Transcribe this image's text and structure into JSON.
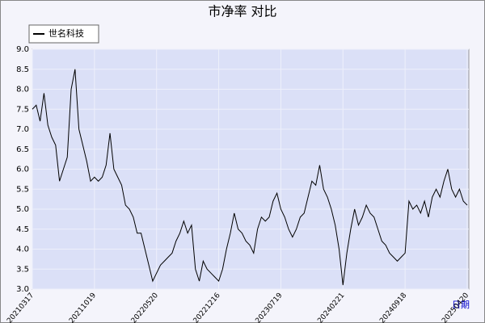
{
  "chart_data": {
    "type": "line",
    "title": "市净率 对比",
    "x_label": "日期",
    "categories": [
      "20210317",
      null,
      null,
      null,
      null,
      null,
      null,
      null,
      null,
      null,
      null,
      null,
      null,
      null,
      null,
      null,
      "20211019",
      null,
      null,
      null,
      null,
      null,
      null,
      null,
      null,
      null,
      null,
      null,
      null,
      null,
      null,
      null,
      "20220520",
      null,
      null,
      null,
      null,
      null,
      null,
      null,
      null,
      null,
      null,
      null,
      null,
      null,
      null,
      null,
      "20221216",
      null,
      null,
      null,
      null,
      null,
      null,
      null,
      null,
      null,
      null,
      null,
      null,
      null,
      null,
      null,
      "20230719",
      null,
      null,
      null,
      null,
      null,
      null,
      null,
      null,
      null,
      null,
      null,
      null,
      null,
      null,
      null,
      "20240221",
      null,
      null,
      null,
      null,
      null,
      null,
      null,
      null,
      null,
      null,
      null,
      null,
      null,
      null,
      null,
      "20240918",
      null,
      null,
      null,
      null,
      null,
      null,
      null,
      null,
      null,
      null,
      null,
      null,
      null,
      null,
      null,
      "20250420"
    ],
    "series": [
      {
        "name": "世名科技",
        "color": "#000000",
        "values": [
          7.5,
          7.6,
          7.2,
          7.9,
          7.1,
          6.8,
          6.6,
          5.7,
          6.0,
          6.3,
          8.0,
          8.5,
          7.0,
          6.6,
          6.2,
          5.7,
          5.8,
          5.7,
          5.8,
          6.1,
          6.9,
          6.0,
          5.8,
          5.6,
          5.1,
          5.0,
          4.8,
          4.4,
          4.4,
          4.0,
          3.6,
          3.2,
          3.4,
          3.6,
          3.7,
          3.8,
          3.9,
          4.2,
          4.4,
          4.7,
          4.4,
          4.6,
          3.5,
          3.2,
          3.7,
          3.5,
          3.4,
          3.3,
          3.2,
          3.5,
          4.0,
          4.4,
          4.9,
          4.5,
          4.4,
          4.2,
          4.1,
          3.9,
          4.5,
          4.8,
          4.7,
          4.8,
          5.2,
          5.4,
          5.0,
          4.8,
          4.5,
          4.3,
          4.5,
          4.8,
          4.9,
          5.3,
          5.7,
          5.6,
          6.1,
          5.5,
          5.3,
          5.0,
          4.6,
          4.0,
          3.1,
          3.9,
          4.5,
          5.0,
          4.6,
          4.8,
          5.1,
          4.9,
          4.8,
          4.5,
          4.2,
          4.1,
          3.9,
          3.8,
          3.7,
          3.8,
          3.9,
          5.2,
          5.0,
          5.1,
          4.9,
          5.2,
          4.8,
          5.3,
          5.5,
          5.3,
          5.7,
          6.0,
          5.5,
          5.3,
          5.5,
          5.2,
          5.1
        ]
      }
    ],
    "ylim": [
      3.0,
      9.0
    ],
    "yticks": [
      {
        "value": 3,
        "label": "3.0"
      },
      {
        "value": 3.5,
        "label": "3.5"
      },
      {
        "value": 4,
        "label": "4.0"
      },
      {
        "value": 4.5,
        "label": "4.5"
      },
      {
        "value": 5,
        "label": "5.0"
      },
      {
        "value": 5.5,
        "label": "5.5"
      },
      {
        "value": 6,
        "label": "6.0"
      },
      {
        "value": 6.5,
        "label": "6.5"
      },
      {
        "value": 7,
        "label": "7.0"
      },
      {
        "value": 7.5,
        "label": "7.5"
      },
      {
        "value": 8,
        "label": "8.0"
      },
      {
        "value": 8.5,
        "label": "8.5"
      },
      {
        "value": 9,
        "label": "9.0"
      }
    ],
    "grid": true
  }
}
